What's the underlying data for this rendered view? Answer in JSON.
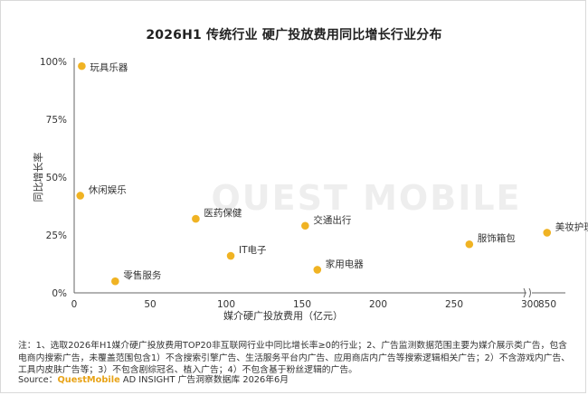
{
  "chart_data": {
    "type": "scatter",
    "title": "2026H1 传统行业 硬广投放费用同比增长行业分布",
    "xlabel": "媒介硬广投放费用（亿元）",
    "ylabel": "同比增长率",
    "x_ticks": [
      "0",
      "50",
      "100",
      "150",
      "200",
      "250",
      "300",
      "850"
    ],
    "y_ticks": [
      "0%",
      "25%",
      "50%",
      "75%",
      "100%"
    ],
    "xlim": [
      0,
      850
    ],
    "ylim": [
      0,
      100
    ],
    "axis_break": [
      300,
      850
    ],
    "grid": false,
    "point_color": "#f0b323",
    "points": [
      {
        "label": "玩具乐器",
        "x": 5,
        "y": 98
      },
      {
        "label": "休闲娱乐",
        "x": 4,
        "y": 42
      },
      {
        "label": "医药保健",
        "x": 80,
        "y": 32
      },
      {
        "label": "交通出行",
        "x": 152,
        "y": 29
      },
      {
        "label": "美妆护理",
        "x": 835,
        "y": 26
      },
      {
        "label": "服饰箱包",
        "x": 260,
        "y": 21
      },
      {
        "label": "IT电子",
        "x": 103,
        "y": 16
      },
      {
        "label": "家用电器",
        "x": 160,
        "y": 10
      },
      {
        "label": "零售服务",
        "x": 27,
        "y": 5
      }
    ]
  },
  "watermark": "QUEST MOBILE",
  "footnote": "注：1、选取2026年H1媒介硬广投放费用TOP20非互联网行业中同比增长率≥0的行业；2、广告监测数据范围主要为媒介展示类广告，包含电商内搜索广告，未覆盖范围包含1）不含搜索引擎广告、生活服务平台内广告、应用商店内广告等搜索逻辑相关广告；2）不含游戏内广告、工具内皮肤广告等；3）不包含剧综冠名、植入广告；4）不包含基于粉丝逻辑的广告。",
  "source": {
    "prefix": "Source：",
    "brand": "QuestMobile",
    "suffix": " AD INSIGHT 广告洞察数据库 2026年6月"
  }
}
